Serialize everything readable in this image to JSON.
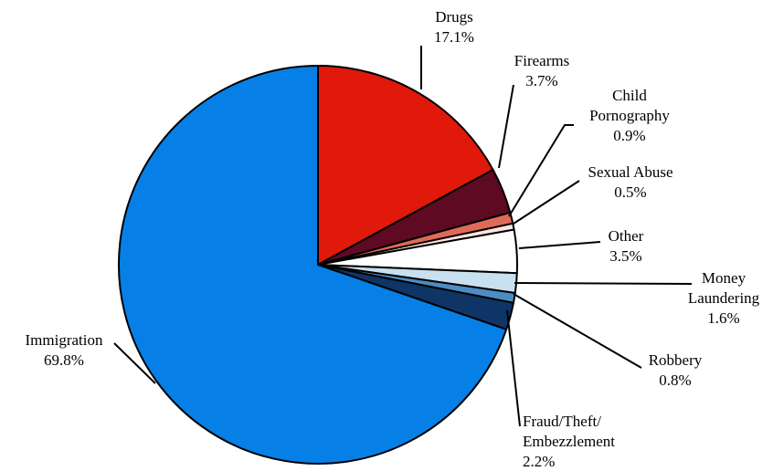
{
  "chart_data": {
    "type": "pie",
    "start": "12 o'clock",
    "direction": "clockwise",
    "slices": [
      {
        "key": "drugs",
        "lines": [
          "Drugs",
          "17.1%"
        ],
        "value": 17.1,
        "color": "#e0190a"
      },
      {
        "key": "firearms",
        "lines": [
          "Firearms",
          "3.7%"
        ],
        "value": 3.7,
        "color": "#5e0a22"
      },
      {
        "key": "child-pornography",
        "lines": [
          "Child",
          "Pornography",
          "0.9%"
        ],
        "value": 0.9,
        "color": "#e06a58"
      },
      {
        "key": "sexual-abuse",
        "lines": [
          "Sexual Abuse",
          "0.5%"
        ],
        "value": 0.5,
        "color": "#fbe4dc"
      },
      {
        "key": "other",
        "lines": [
          "Other",
          "3.5%"
        ],
        "value": 3.5,
        "color": "#ffffff"
      },
      {
        "key": "money-laundering",
        "lines": [
          "Money",
          "Laundering",
          "1.6%"
        ],
        "value": 1.6,
        "color": "#c9e0f0"
      },
      {
        "key": "robbery",
        "lines": [
          "Robbery",
          "0.8%"
        ],
        "value": 0.8,
        "color": "#4b8dc2"
      },
      {
        "key": "fraud-theft-embezzlement",
        "lines": [
          "Fraud/Theft/",
          "Embezzlement",
          "2.2%"
        ],
        "value": 2.2,
        "color": "#0e3566"
      },
      {
        "key": "immigration",
        "lines": [
          "Immigration",
          "69.8%"
        ],
        "value": 69.8,
        "color": "#0680e6"
      }
    ]
  }
}
